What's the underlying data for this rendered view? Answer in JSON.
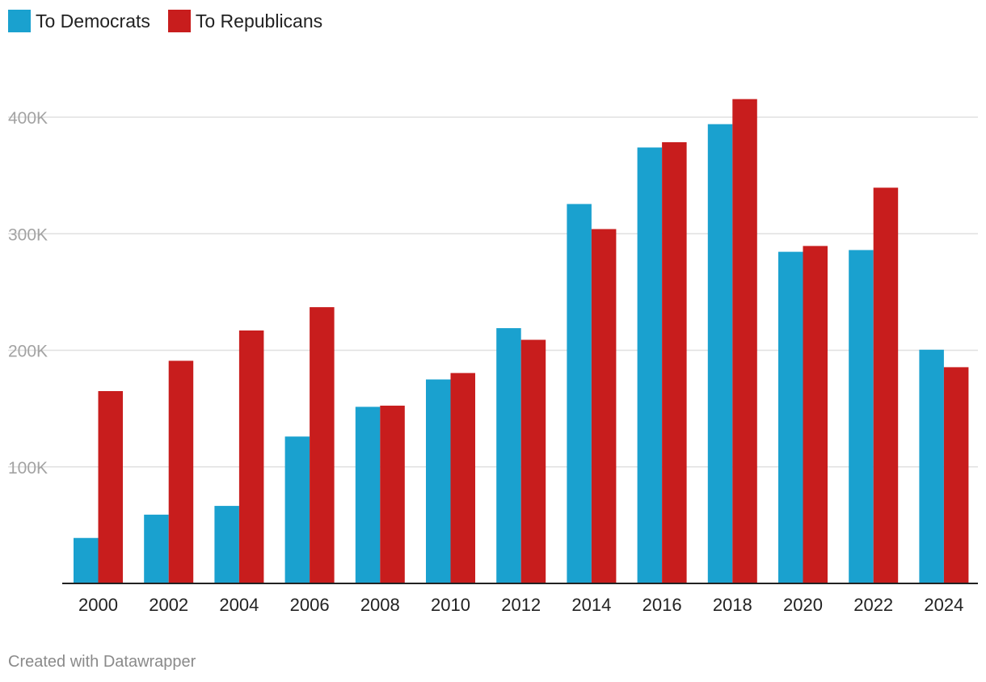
{
  "legend": {
    "dem_label": "To Democrats",
    "rep_label": "To Republicans"
  },
  "footer": {
    "credit": "Created with Datawrapper"
  },
  "colors": {
    "democrats": "#1aa1cf",
    "republicans": "#c81d1d",
    "gridline": "#e0e0e0",
    "baseline": "#222222"
  },
  "chart_data": {
    "type": "bar",
    "title": "",
    "xlabel": "",
    "ylabel": "",
    "ylim": [
      0,
      450000
    ],
    "yticks": [
      {
        "value": 100000,
        "label": "100K"
      },
      {
        "value": 200000,
        "label": "200K"
      },
      {
        "value": 300000,
        "label": "300K"
      },
      {
        "value": 400000,
        "label": "400K"
      }
    ],
    "grid": true,
    "legend_position": "top-left",
    "categories": [
      "2000",
      "2002",
      "2004",
      "2006",
      "2008",
      "2010",
      "2012",
      "2014",
      "2016",
      "2018",
      "2020",
      "2022",
      "2024"
    ],
    "series": [
      {
        "name": "To Democrats",
        "color_key": "democrats",
        "values": [
          39000,
          59000,
          66500,
          126000,
          151500,
          175000,
          219000,
          325500,
          374000,
          394000,
          284500,
          286000,
          200500
        ]
      },
      {
        "name": "To Republicans",
        "color_key": "republicans",
        "values": [
          165000,
          191000,
          217000,
          237000,
          152500,
          180500,
          209000,
          304000,
          378500,
          415500,
          289500,
          339500,
          185500
        ]
      }
    ]
  }
}
